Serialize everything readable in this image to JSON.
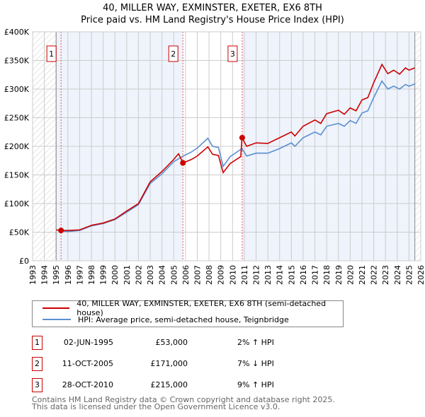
{
  "chart_data": {
    "type": "line",
    "title": "40, MILLER WAY, EXMINSTER, EXETER, EX6 8TH",
    "subtitle": "Price paid vs. HM Land Registry's House Price Index (HPI)",
    "xlim": [
      1993,
      2026
    ],
    "ylim": [
      0,
      400000
    ],
    "yticks": [
      "£0",
      "£50K",
      "£100K",
      "£150K",
      "£200K",
      "£250K",
      "£300K",
      "£350K",
      "£400K"
    ],
    "xticks": [
      "1993",
      "1994",
      "1995",
      "1996",
      "1997",
      "1998",
      "1999",
      "2000",
      "2001",
      "2002",
      "2003",
      "2004",
      "2005",
      "2006",
      "2007",
      "2008",
      "2009",
      "2010",
      "2011",
      "2012",
      "2013",
      "2014",
      "2015",
      "2016",
      "2017",
      "2018",
      "2019",
      "2020",
      "2021",
      "2022",
      "2023",
      "2024",
      "2025",
      "2026"
    ],
    "grid": true,
    "series": [
      {
        "name": "40, MILLER WAY, EXMINSTER, EXETER, EX6 8TH (semi-detached house)",
        "color": "#cc0000",
        "x": [
          1995.0,
          1995.4,
          1996,
          1997,
          1998,
          1999,
          2000,
          2001,
          2002,
          2003,
          2004,
          2005,
          2005.4,
          2005.8,
          2006.5,
          2007,
          2007.9,
          2008.3,
          2008.8,
          2009.2,
          2009.8,
          2010.7,
          2010.8,
          2011.2,
          2012,
          2013,
          2014,
          2015,
          2015.3,
          2016,
          2017,
          2017.5,
          2018,
          2019,
          2019.5,
          2020,
          2020.5,
          2021,
          2021.5,
          2022,
          2022.7,
          2023.2,
          2023.7,
          2024.2,
          2024.7,
          2025,
          2025.5
        ],
        "y": [
          54,
          53,
          53,
          54,
          62,
          66,
          73,
          87,
          100,
          138,
          156,
          177,
          187,
          171,
          177,
          183,
          199,
          186,
          184,
          154,
          170,
          182,
          215,
          200,
          206,
          205,
          215,
          225,
          218,
          235,
          246,
          240,
          257,
          263,
          256,
          267,
          262,
          281,
          285,
          311,
          343,
          327,
          333,
          326,
          337,
          333,
          337
        ]
      },
      {
        "name": "HPI: Average price, semi-detached house, Teignbridge",
        "color": "#5b8fd0",
        "x": [
          1995.4,
          1996,
          1997,
          1998,
          1999,
          2000,
          2001,
          2002,
          2003,
          2004,
          2005,
          2005.8,
          2006.5,
          2007,
          2007.9,
          2008.3,
          2008.8,
          2009.2,
          2009.8,
          2010.8,
          2011.2,
          2012,
          2013,
          2014,
          2015,
          2015.3,
          2016,
          2017,
          2017.5,
          2018,
          2019,
          2019.5,
          2020,
          2020.5,
          2021,
          2021.5,
          2022,
          2022.7,
          2023.2,
          2023.7,
          2024.2,
          2024.7,
          2025,
          2025.5
        ],
        "y": [
          52,
          51,
          53,
          61,
          65,
          72,
          85,
          98,
          135,
          152,
          173,
          183,
          190,
          197,
          214,
          200,
          198,
          165,
          182,
          196,
          183,
          188,
          188,
          196,
          206,
          200,
          215,
          225,
          220,
          235,
          240,
          235,
          245,
          240,
          258,
          262,
          285,
          314,
          300,
          305,
          300,
          308,
          305,
          309
        ]
      }
    ],
    "y_units": "thousands GBP",
    "sales": [
      {
        "num": "1",
        "x": 1995.42,
        "y": 53,
        "date": "02-JUN-1995",
        "price": "£53,000",
        "hpi": "2% ↑ HPI"
      },
      {
        "num": "2",
        "x": 2005.78,
        "y": 171,
        "date": "11-OCT-2005",
        "price": "£171,000",
        "hpi": "7% ↓ HPI"
      },
      {
        "num": "3",
        "x": 2010.82,
        "y": 215,
        "date": "28-OCT-2010",
        "price": "£215,000",
        "hpi": "9% ↑ HPI"
      }
    ],
    "data_end": 2025.5
  },
  "footer": {
    "line1": "Contains HM Land Registry data © Crown copyright and database right 2025.",
    "line2": "This data is licensed under the Open Government Licence v3.0."
  }
}
